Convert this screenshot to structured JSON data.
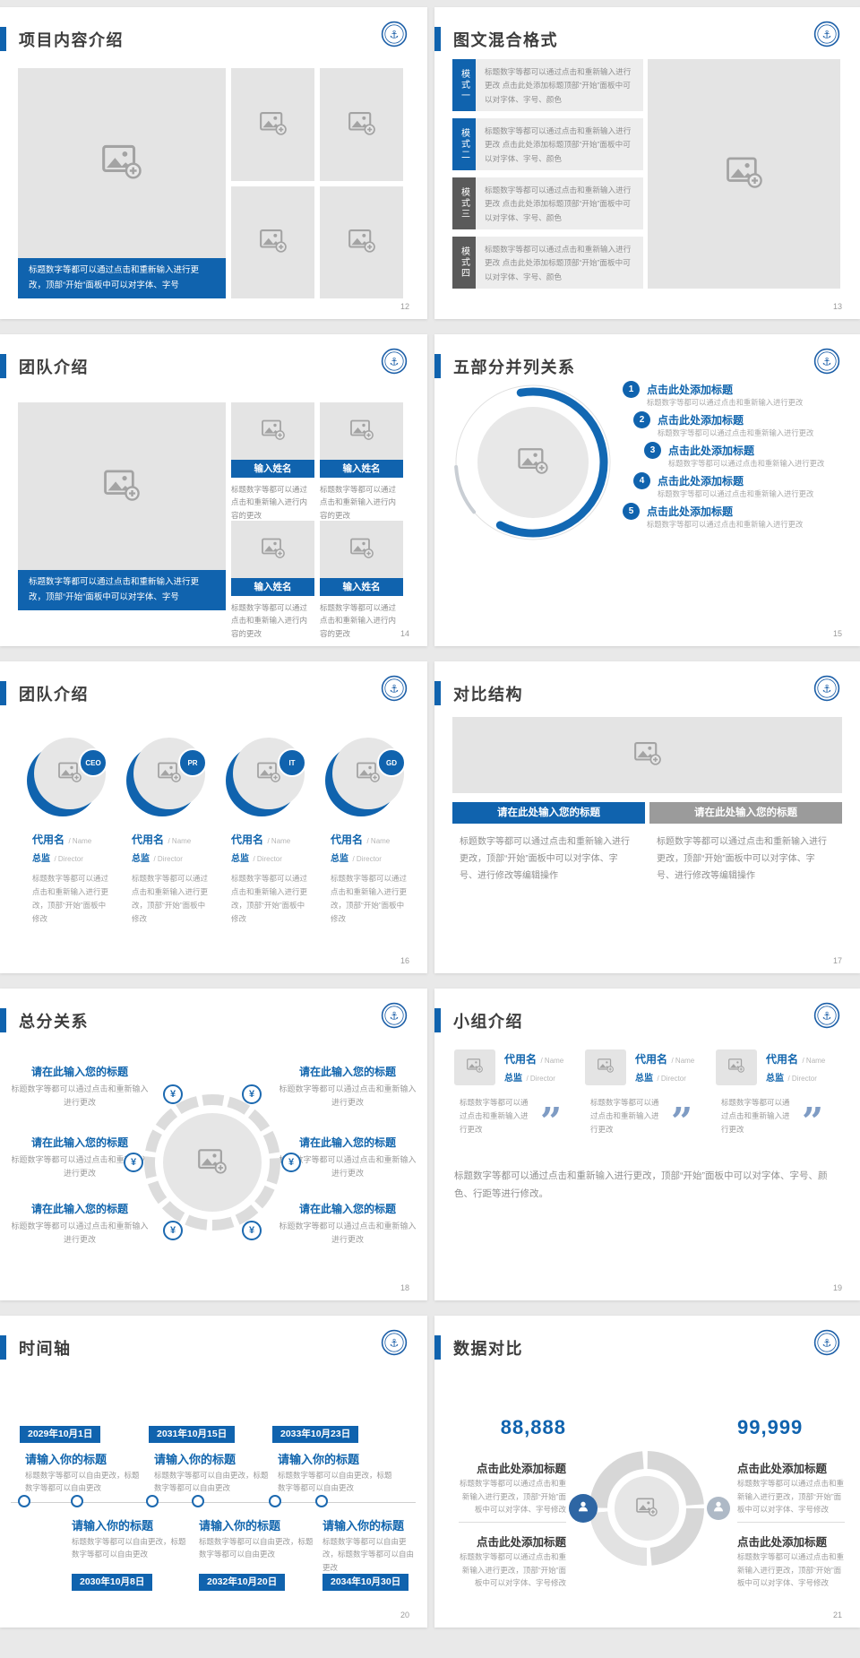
{
  "icons": {
    "money": "¥",
    "quote": "”"
  },
  "s12": {
    "title": "项目内容介绍",
    "page": "12",
    "caption": "标题数字等都可以通过点击和重新输入进行更改，顶部“开始”面板中可以对字体、字号"
  },
  "s13": {
    "title": "图文混合格式",
    "page": "13",
    "modes": [
      {
        "label": "模式一",
        "body": "标题数字等都可以通过点击和重新输入进行更改 点击此处添加标题顶部“开始”面板中可以对字体、字号、颜色"
      },
      {
        "label": "模式二",
        "body": "标题数字等都可以通过点击和重新输入进行更改 点击此处添加标题顶部“开始”面板中可以对字体、字号、颜色"
      },
      {
        "label": "模式三",
        "body": "标题数字等都可以通过点击和重新输入进行更改 点击此处添加标题顶部“开始”面板中可以对字体、字号、颜色"
      },
      {
        "label": "模式四",
        "body": "标题数字等都可以通过点击和重新输入进行更改 点击此处添加标题顶部“开始”面板中可以对字体、字号、颜色"
      }
    ]
  },
  "s14": {
    "title": "团队介绍",
    "page": "14",
    "caption": "标题数字等都可以通过点击和重新输入进行更改，顶部“开始”面板中可以对字体、字号",
    "cards": [
      {
        "name": "输入姓名",
        "body": "标题数字等都可以通过点击和重新输入进行内容的更改"
      },
      {
        "name": "输入姓名",
        "body": "标题数字等都可以通过点击和重新输入进行内容的更改"
      },
      {
        "name": "输入姓名",
        "body": "标题数字等都可以通过点击和重新输入进行内容的更改"
      },
      {
        "name": "输入姓名",
        "body": "标题数字等都可以通过点击和重新输入进行内容的更改"
      }
    ]
  },
  "s15": {
    "title": "五部分并列关系",
    "page": "15",
    "items": [
      {
        "num": "1",
        "head": "点击此处添加标题",
        "body": "标题数字等都可以通过点击和重新输入进行更改"
      },
      {
        "num": "2",
        "head": "点击此处添加标题",
        "body": "标题数字等都可以通过点击和重新输入进行更改"
      },
      {
        "num": "3",
        "head": "点击此处添加标题",
        "body": "标题数字等都可以通过点击和重新输入进行更改"
      },
      {
        "num": "4",
        "head": "点击此处添加标题",
        "body": "标题数字等都可以通过点击和重新输入进行更改"
      },
      {
        "num": "5",
        "head": "点击此处添加标题",
        "body": "标题数字等都可以通过点击和重新输入进行更改"
      }
    ]
  },
  "s16": {
    "title": "团队介绍",
    "page": "16",
    "members": [
      {
        "badge": "CEO",
        "name": "代用名",
        "name_en": "/ Name",
        "role": "总监",
        "role_en": "/ Director",
        "body": "标题数字等都可以通过点击和重新输入进行更改，顶部“开始”面板中修改"
      },
      {
        "badge": "PR",
        "name": "代用名",
        "name_en": "/ Name",
        "role": "总监",
        "role_en": "/ Director",
        "body": "标题数字等都可以通过点击和重新输入进行更改，顶部“开始”面板中修改"
      },
      {
        "badge": "IT",
        "name": "代用名",
        "name_en": "/ Name",
        "role": "总监",
        "role_en": "/ Director",
        "body": "标题数字等都可以通过点击和重新输入进行更改，顶部“开始”面板中修改"
      },
      {
        "badge": "GD",
        "name": "代用名",
        "name_en": "/ Name",
        "role": "总监",
        "role_en": "/ Director",
        "body": "标题数字等都可以通过点击和重新输入进行更改，顶部“开始”面板中修改"
      }
    ]
  },
  "s17": {
    "title": "对比结构",
    "page": "17",
    "left_head": "请在此处输入您的标题",
    "right_head": "请在此处输入您的标题",
    "body": "标题数字等都可以通过点击和重新输入进行更改，顶部“开始”面板中可以对字体、字号、进行修改等编辑操作"
  },
  "s18": {
    "title": "总分关系",
    "page": "18",
    "items": [
      {
        "head": "请在此输入您的标题",
        "body": "标题数字等都可以通过点击和重新输入进行更改"
      },
      {
        "head": "请在此输入您的标题",
        "body": "标题数字等都可以通过点击和重新输入进行更改"
      },
      {
        "head": "请在此输入您的标题",
        "body": "标题数字等都可以通过点击和重新输入进行更改"
      },
      {
        "head": "请在此输入您的标题",
        "body": "标题数字等都可以通过点击和重新输入进行更改"
      },
      {
        "head": "请在此输入您的标题",
        "body": "标题数字等都可以通过点击和重新输入进行更改"
      },
      {
        "head": "请在此输入您的标题",
        "body": "标题数字等都可以通过点击和重新输入进行更改"
      }
    ]
  },
  "s19": {
    "title": "小组介绍",
    "page": "19",
    "members": [
      {
        "name": "代用名",
        "name_en": "/ Name",
        "role": "总监",
        "role_en": "/ Director",
        "body": "标题数字等都可以通过点击和重新输入进行更改"
      },
      {
        "name": "代用名",
        "name_en": "/ Name",
        "role": "总监",
        "role_en": "/ Director",
        "body": "标题数字等都可以通过点击和重新输入进行更改"
      },
      {
        "name": "代用名",
        "name_en": "/ Name",
        "role": "总监",
        "role_en": "/ Director",
        "body": "标题数字等都可以通过点击和重新输入进行更改"
      }
    ],
    "footer": "标题数字等都可以通过点击和重新输入进行更改，顶部“开始”面板中可以对字体、字号、颜色、行距等进行修改。"
  },
  "s20": {
    "title": "时间轴",
    "page": "20",
    "top": [
      {
        "date": "2029年10月1日",
        "head": "请输入你的标题",
        "body": "标题数字等都可以自由更改，标题数字等都可以自由更改"
      },
      {
        "date": "2031年10月15日",
        "head": "请输入你的标题",
        "body": "标题数字等都可以自由更改，标题数字等都可以自由更改"
      },
      {
        "date": "2033年10月23日",
        "head": "请输入你的标题",
        "body": "标题数字等都可以自由更改，标题数字等都可以自由更改"
      }
    ],
    "bottom": [
      {
        "date": "2030年10月8日",
        "head": "请输入你的标题",
        "body": "标题数字等都可以自由更改，标题数字等都可以自由更改"
      },
      {
        "date": "2032年10月20日",
        "head": "请输入你的标题",
        "body": "标题数字等都可以自由更改，标题数字等都可以自由更改"
      },
      {
        "date": "2034年10月30日",
        "head": "请输入你的标题",
        "body": "标题数字等都可以自由更改，标题数字等都可以自由更改"
      }
    ]
  },
  "s21": {
    "title": "数据对比",
    "page": "21",
    "left_value": "88,888",
    "right_value": "99,999",
    "head": "点击此处添加标题",
    "body": "标题数字等都可以通过点击和重新输入进行更改，顶部“开始”面板中可以对字体、字号修改"
  }
}
